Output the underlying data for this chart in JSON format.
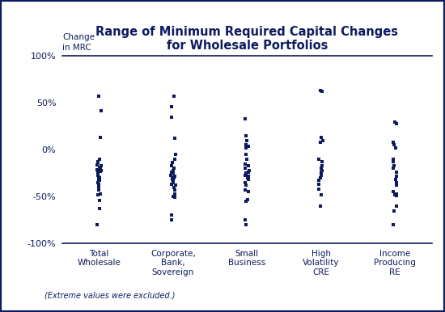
{
  "title": "Range of Minimum Required Capital Changes\nfor Wholesale Portfolios",
  "ylabel": "Change\nin MRC",
  "footnote": "(Extreme values were excluded.)",
  "categories": [
    "Total\nWholesale",
    "Corporate,\nBank,\nSovereign",
    "Small\nBusiness",
    "High\nVolatility\nCRE",
    "Income\nProducing\nRE"
  ],
  "dot_color": "#0d1b5e",
  "border_color": "#0d1b5e",
  "bg_color": "#ffffff",
  "plot_bg": "#ffffff",
  "ylim": [
    -100,
    100
  ],
  "yticks": [
    -100,
    -50,
    0,
    50,
    100
  ],
  "ytick_labels": [
    "-100%",
    "-50%",
    "0%",
    "50%",
    "100%"
  ],
  "data": {
    "Total Wholesale": [
      57,
      42,
      13,
      -10,
      -13,
      -14,
      -16,
      -17,
      -19,
      -20,
      -21,
      -22,
      -23,
      -25,
      -26,
      -27,
      -29,
      -30,
      -31,
      -32,
      -33,
      -35,
      -37,
      -40,
      -43,
      -47,
      -48,
      -54,
      -63,
      -80
    ],
    "Corporate Bank Sovereign": [
      57,
      46,
      35,
      12,
      -5,
      -10,
      -14,
      -17,
      -20,
      -22,
      -24,
      -25,
      -27,
      -28,
      -29,
      -30,
      -32,
      -33,
      -35,
      -37,
      -38,
      -40,
      -43,
      -47,
      -50,
      -51,
      -70,
      -75
    ],
    "Small Business": [
      33,
      15,
      10,
      5,
      4,
      2,
      -5,
      -10,
      -15,
      -17,
      -20,
      -22,
      -24,
      -25,
      -27,
      -28,
      -30,
      -31,
      -32,
      -35,
      -38,
      -43,
      -45,
      -53,
      -55,
      -75,
      -80
    ],
    "High Volatility CRE": [
      63,
      62,
      13,
      10,
      8,
      -10,
      -13,
      -17,
      -20,
      -22,
      -24,
      -27,
      -30,
      -33,
      -37,
      -42,
      -48,
      -60
    ],
    "Income Producing RE": [
      30,
      28,
      8,
      5,
      2,
      -10,
      -13,
      -17,
      -20,
      -24,
      -28,
      -32,
      -35,
      -38,
      -45,
      -47,
      -48,
      -49,
      -60,
      -65,
      -80
    ]
  }
}
